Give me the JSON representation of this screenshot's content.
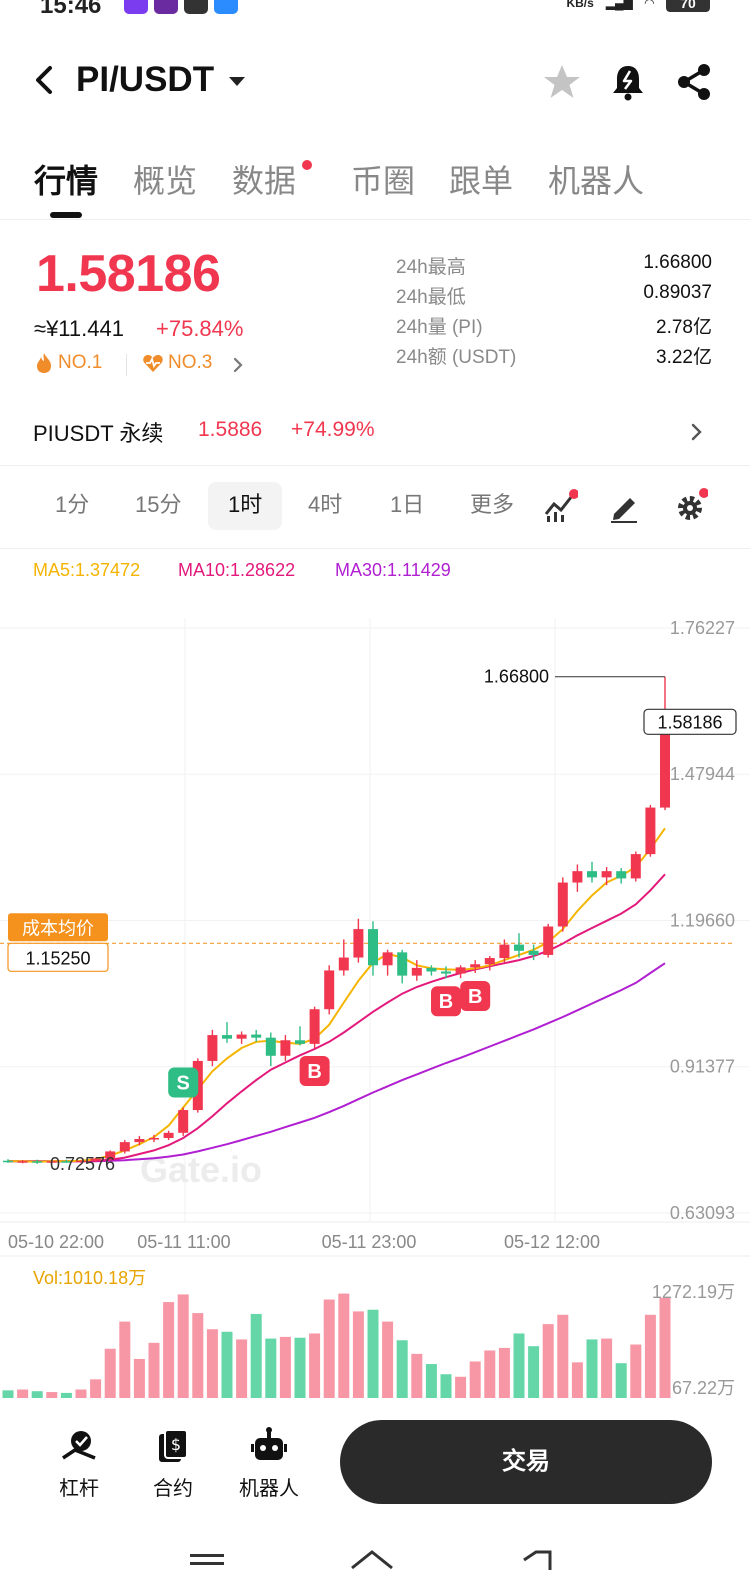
{
  "status": {
    "time": "15:46",
    "net": "KB/s",
    "battery": "70"
  },
  "header": {
    "pair": "PI/USDT"
  },
  "tabs": [
    {
      "label": "行情",
      "active": true
    },
    {
      "label": "概览"
    },
    {
      "label": "数据",
      "dot": true
    },
    {
      "label": "币圈"
    },
    {
      "label": "跟单"
    },
    {
      "label": "机器人"
    }
  ],
  "ticker": {
    "price": "1.58186",
    "cny": "≈¥11.441",
    "change": "+75.84%",
    "rank1": "NO.1",
    "rank2": "NO.3",
    "stats": [
      {
        "label": "24h最高",
        "value": "1.66800"
      },
      {
        "label": "24h最低",
        "value": "0.89037"
      },
      {
        "label": "24h量 (PI)",
        "value": "2.78亿"
      },
      {
        "label": "24h额 (USDT)",
        "value": "3.22亿"
      }
    ]
  },
  "contract": {
    "name": "PIUSDT 永续",
    "price": "1.5886",
    "change": "+74.99%"
  },
  "timeframes": [
    {
      "label": "1分"
    },
    {
      "label": "15分"
    },
    {
      "label": "1时",
      "active": true
    },
    {
      "label": "4时"
    },
    {
      "label": "1日"
    },
    {
      "label": "更多"
    }
  ],
  "ma": {
    "ma5": "MA5:1.37472",
    "ma10": "MA10:1.28622",
    "ma30": "MA30:1.11429"
  },
  "chart_data": {
    "type": "candlestick",
    "y_ticks": [
      "1.76227",
      "1.47944",
      "1.19660",
      "0.91377",
      "0.63093"
    ],
    "x_ticks": [
      "05-10 22:00",
      "05-11 11:00",
      "05-11 23:00",
      "05-12 12:00"
    ],
    "high_marker": "1.66800",
    "low_marker": "0.72576",
    "last_price": "1.58186",
    "cost_label": "成本均价",
    "cost_value": "1.15250",
    "watermark": "Gate.io",
    "candles": [
      [
        0.732,
        0.735,
        0.728,
        0.73
      ],
      [
        0.73,
        0.733,
        0.727,
        0.731
      ],
      [
        0.731,
        0.734,
        0.726,
        0.729
      ],
      [
        0.729,
        0.732,
        0.727,
        0.731
      ],
      [
        0.731,
        0.734,
        0.728,
        0.73
      ],
      [
        0.73,
        0.733,
        0.728,
        0.732
      ],
      [
        0.732,
        0.738,
        0.73,
        0.736
      ],
      [
        0.736,
        0.752,
        0.734,
        0.75
      ],
      [
        0.75,
        0.772,
        0.746,
        0.768
      ],
      [
        0.768,
        0.78,
        0.762,
        0.774
      ],
      [
        0.774,
        0.782,
        0.768,
        0.776
      ],
      [
        0.776,
        0.79,
        0.772,
        0.786
      ],
      [
        0.786,
        0.835,
        0.78,
        0.83
      ],
      [
        0.83,
        0.93,
        0.825,
        0.925
      ],
      [
        0.925,
        0.985,
        0.915,
        0.975
      ],
      [
        0.975,
        1.0,
        0.96,
        0.968
      ],
      [
        0.968,
        0.982,
        0.958,
        0.976
      ],
      [
        0.976,
        0.985,
        0.962,
        0.97
      ],
      [
        0.97,
        0.98,
        0.915,
        0.935
      ],
      [
        0.935,
        0.975,
        0.925,
        0.965
      ],
      [
        0.965,
        0.992,
        0.955,
        0.958
      ],
      [
        0.958,
        1.03,
        0.95,
        1.025
      ],
      [
        1.025,
        1.11,
        1.015,
        1.1
      ],
      [
        1.1,
        1.16,
        1.09,
        1.125
      ],
      [
        1.125,
        1.2,
        1.115,
        1.18
      ],
      [
        1.18,
        1.195,
        1.09,
        1.11
      ],
      [
        1.11,
        1.14,
        1.09,
        1.135
      ],
      [
        1.135,
        1.14,
        1.075,
        1.09
      ],
      [
        1.09,
        1.12,
        1.08,
        1.105
      ],
      [
        1.105,
        1.11,
        1.09,
        1.098
      ],
      [
        1.098,
        1.108,
        1.085,
        1.094
      ],
      [
        1.094,
        1.11,
        1.085,
        1.106
      ],
      [
        1.106,
        1.12,
        1.095,
        1.112
      ],
      [
        1.112,
        1.128,
        1.1,
        1.124
      ],
      [
        1.124,
        1.16,
        1.115,
        1.15
      ],
      [
        1.15,
        1.172,
        1.125,
        1.138
      ],
      [
        1.138,
        1.15,
        1.12,
        1.13
      ],
      [
        1.13,
        1.19,
        1.125,
        1.185
      ],
      [
        1.185,
        1.28,
        1.175,
        1.27
      ],
      [
        1.27,
        1.305,
        1.252,
        1.292
      ],
      [
        1.292,
        1.31,
        1.27,
        1.28
      ],
      [
        1.28,
        1.3,
        1.265,
        1.292
      ],
      [
        1.292,
        1.298,
        1.268,
        1.278
      ],
      [
        1.278,
        1.33,
        1.272,
        1.325
      ],
      [
        1.325,
        1.42,
        1.32,
        1.415
      ],
      [
        1.415,
        1.668,
        1.41,
        1.582
      ]
    ],
    "ma5": [
      0.731,
      0.731,
      0.73,
      0.731,
      0.731,
      0.732,
      0.735,
      0.742,
      0.752,
      0.764,
      0.778,
      0.8,
      0.835,
      0.87,
      0.905,
      0.93,
      0.95,
      0.962,
      0.964,
      0.96,
      0.958,
      0.968,
      0.995,
      1.038,
      1.08,
      1.115,
      1.132,
      1.125,
      1.11,
      1.104,
      1.102,
      1.101,
      1.104,
      1.11,
      1.12,
      1.13,
      1.14,
      1.155,
      1.18,
      1.215,
      1.245,
      1.27,
      1.283,
      1.3,
      1.335,
      1.375
    ],
    "ma10": [
      0.731,
      0.731,
      0.731,
      0.731,
      0.731,
      0.731,
      0.732,
      0.734,
      0.738,
      0.745,
      0.752,
      0.762,
      0.776,
      0.795,
      0.818,
      0.843,
      0.866,
      0.888,
      0.908,
      0.922,
      0.936,
      0.948,
      0.962,
      0.98,
      1.0,
      1.02,
      1.038,
      1.055,
      1.068,
      1.078,
      1.087,
      1.095,
      1.102,
      1.108,
      1.114,
      1.12,
      1.128,
      1.138,
      1.152,
      1.168,
      1.182,
      1.196,
      1.21,
      1.228,
      1.255,
      1.286
    ],
    "ma30": [
      0.731,
      0.731,
      0.731,
      0.731,
      0.731,
      0.731,
      0.731,
      0.732,
      0.733,
      0.735,
      0.737,
      0.74,
      0.744,
      0.75,
      0.757,
      0.764,
      0.772,
      0.78,
      0.788,
      0.797,
      0.806,
      0.815,
      0.826,
      0.838,
      0.851,
      0.864,
      0.876,
      0.888,
      0.899,
      0.91,
      0.921,
      0.931,
      0.942,
      0.953,
      0.964,
      0.975,
      0.986,
      0.998,
      1.01,
      1.023,
      1.036,
      1.049,
      1.062,
      1.076,
      1.095,
      1.114
    ],
    "markers": [
      {
        "label": "S",
        "index": 12,
        "side": "sell"
      },
      {
        "label": "B",
        "index": 21,
        "side": "buy"
      },
      {
        "label": "B",
        "index": 30,
        "side": "buy"
      },
      {
        "label": "B",
        "index": 32,
        "side": "buy"
      }
    ],
    "volume_label": "Vol:1010.18万",
    "volume_ticks": [
      "1272.19万",
      "67.22万"
    ],
    "volume": [
      90,
      100,
      80,
      70,
      60,
      100,
      220,
      580,
      900,
      460,
      650,
      1130,
      1220,
      1000,
      810,
      780,
      690,
      990,
      700,
      720,
      710,
      760,
      1160,
      1230,
      1020,
      1040,
      900,
      680,
      520,
      400,
      280,
      250,
      430,
      560,
      590,
      760,
      610,
      870,
      980,
      420,
      690,
      700,
      410,
      630,
      980,
      1180
    ]
  },
  "bottom_bar": {
    "leverage": "杠杆",
    "contract": "合约",
    "robot": "机器人",
    "trade": "交易"
  },
  "colors": {
    "up": "#f0374f",
    "down": "#2ebd85",
    "ma5": "#f5b400",
    "ma10": "#e3197b",
    "ma30": "#b01fd1"
  }
}
